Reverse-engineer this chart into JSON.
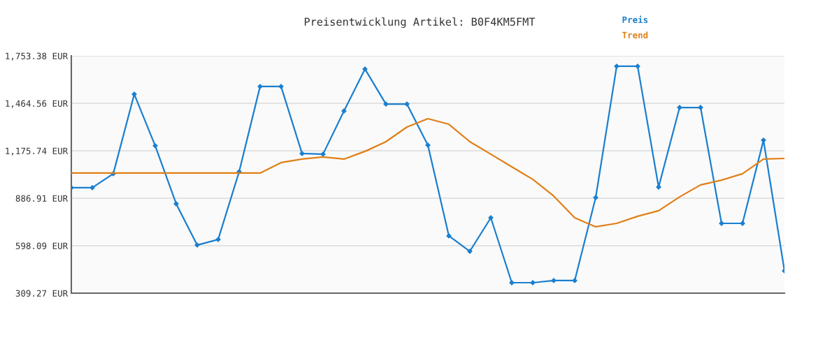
{
  "chart_data": {
    "type": "line",
    "title": "Preisentwicklung Artikel: B0F4KM5FMT",
    "categories": [
      null,
      null,
      null,
      null,
      null,
      null,
      null,
      null,
      null,
      null,
      null,
      null,
      null,
      null,
      null,
      null,
      null,
      null,
      null,
      null,
      null,
      null,
      null,
      null,
      null,
      null,
      null,
      null,
      null,
      null,
      null,
      null,
      null,
      null,
      null
    ],
    "series": [
      {
        "name": "Preis",
        "color": "#1a7fcf",
        "marker": "diamond",
        "values": [
          951,
          951,
          1036,
          1520,
          1206,
          853,
          602,
          636,
          1048,
          1567,
          1567,
          1159,
          1155,
          1418,
          1673,
          1460,
          1460,
          1210,
          658,
          564,
          768,
          373,
          373,
          386,
          386,
          891,
          1690,
          1690,
          955,
          1439,
          1439,
          734,
          734,
          1240,
          445
        ]
      },
      {
        "name": "Trend",
        "color": "#e07f17",
        "marker": "none",
        "values": [
          1040,
          1040,
          1040,
          1040,
          1040,
          1040,
          1040,
          1040,
          1040,
          1040,
          1104,
          1125,
          1138,
          1125,
          1172,
          1231,
          1320,
          1371,
          1337,
          1231,
          1155,
          1078,
          1002,
          900,
          768,
          713,
          734,
          777,
          811,
          895,
          968,
          997,
          1036,
          1125,
          1129
        ]
      }
    ],
    "ylim": [
      309.27,
      1753.38
    ],
    "yticks": [
      {
        "value": 309.27,
        "label": "309.27 EUR"
      },
      {
        "value": 598.09,
        "label": "598.09 EUR"
      },
      {
        "value": 886.91,
        "label": "886.91 EUR"
      },
      {
        "value": 1175.74,
        "label": "1,175.74 EUR"
      },
      {
        "value": 1464.56,
        "label": "1,464.56 EUR"
      },
      {
        "value": 1753.38,
        "label": "1,753.38 EUR"
      }
    ],
    "grid": "y",
    "legend": "top right",
    "tick_labels": "y",
    "line_style": "solid"
  }
}
